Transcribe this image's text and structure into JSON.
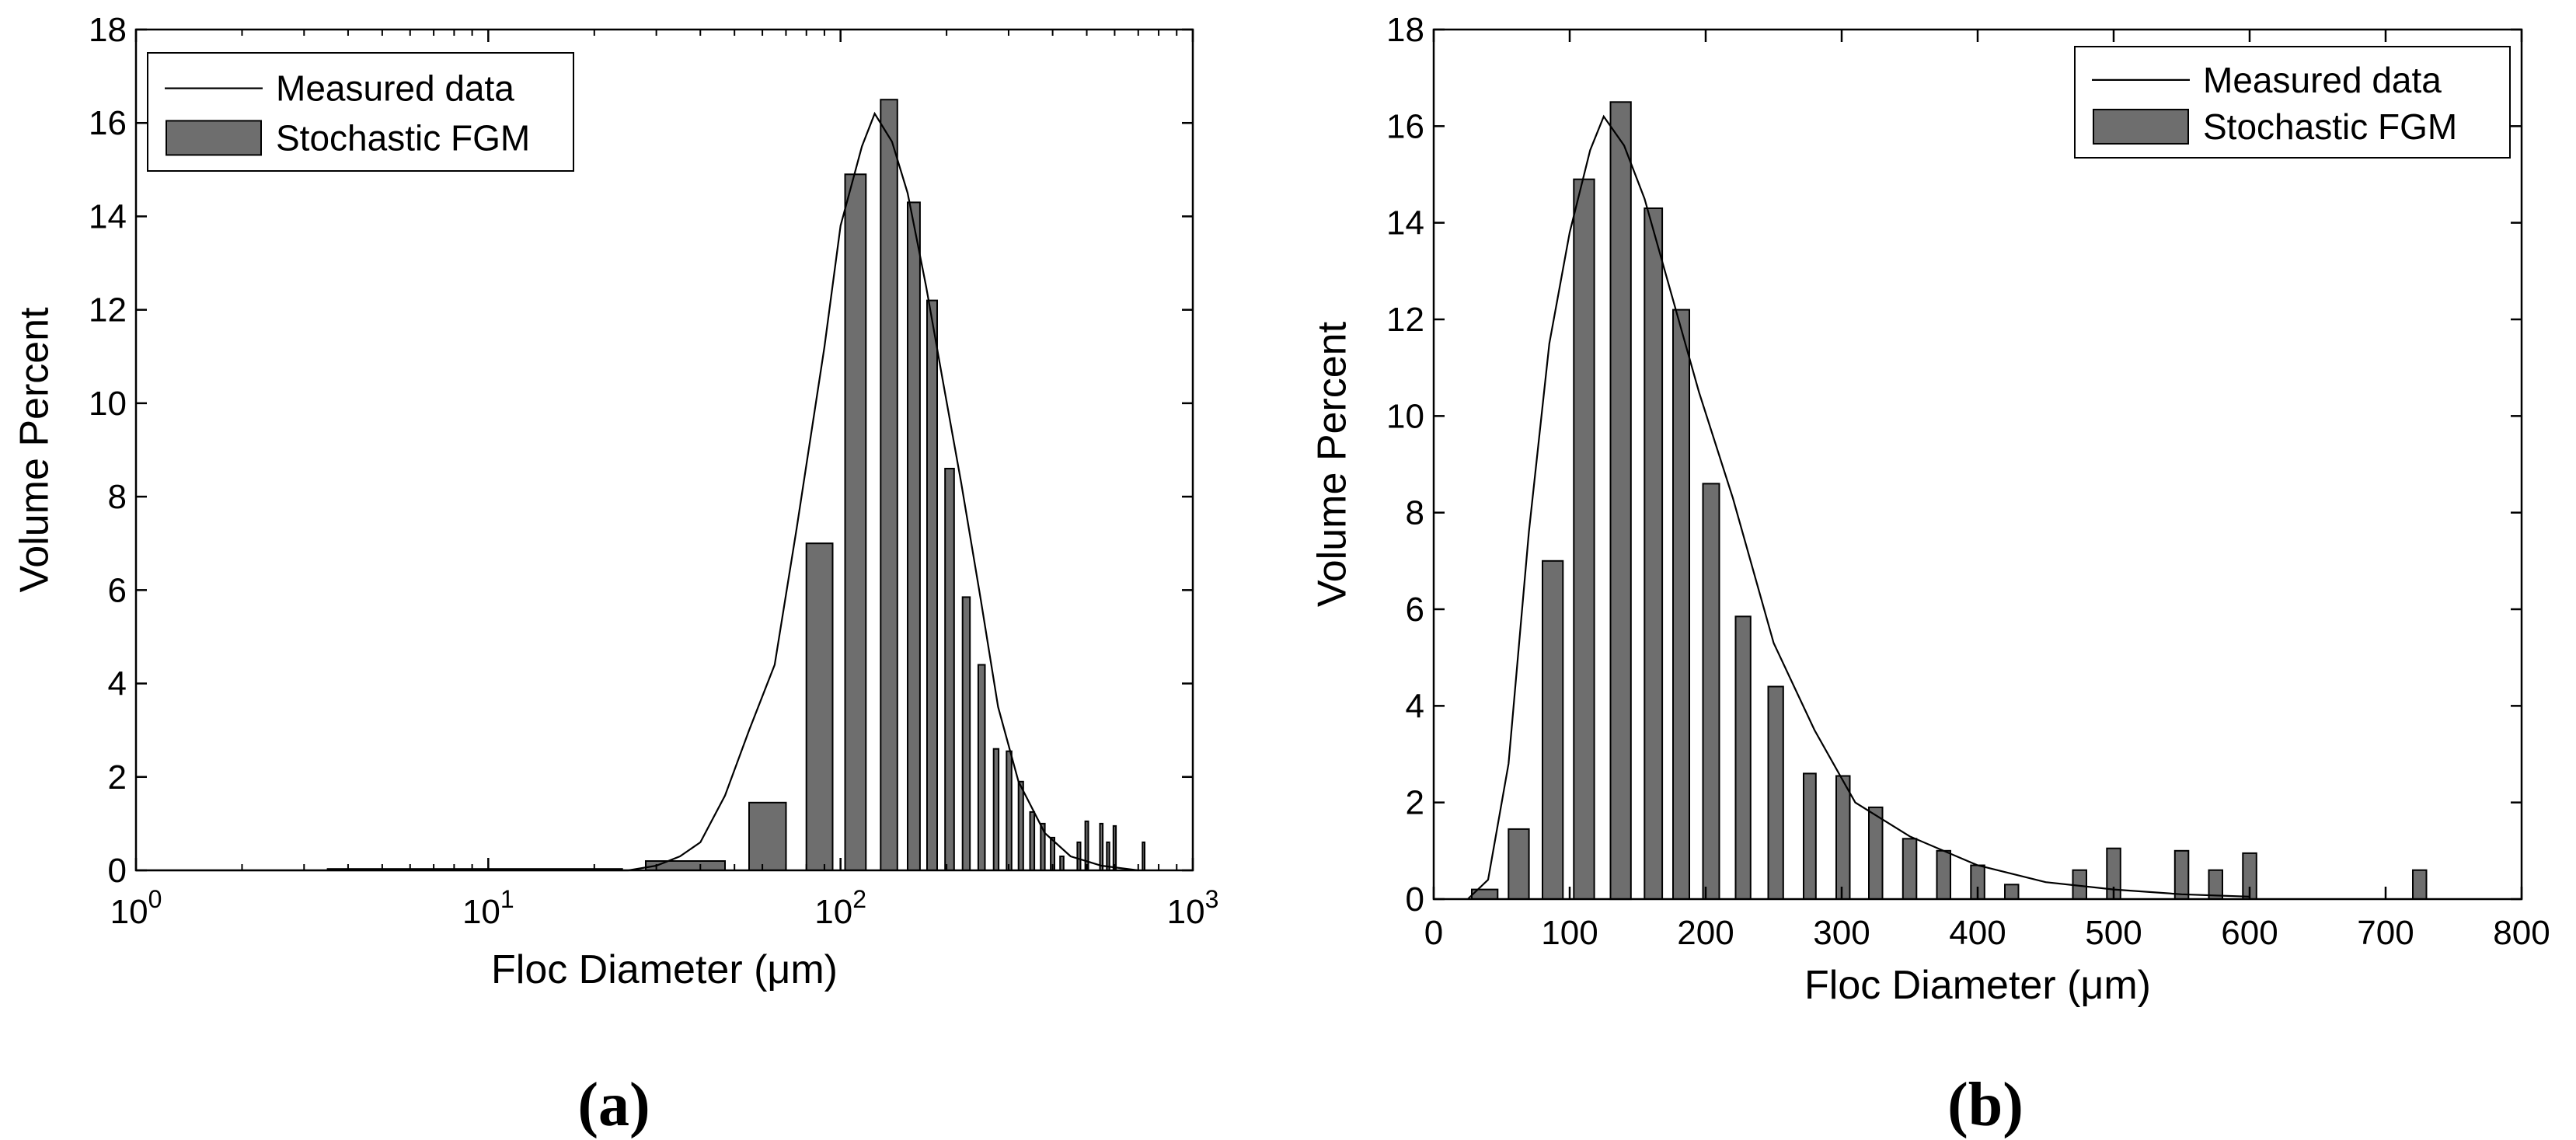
{
  "chart_data": [
    {
      "panel_label": "(a)",
      "type": "bar",
      "xscale": "log",
      "xlabel": "Floc Diameter (μm)",
      "ylabel": "Volume Percent",
      "xlim": [
        1,
        1000
      ],
      "ylim": [
        0,
        18
      ],
      "yticks": [
        0,
        2,
        4,
        6,
        8,
        10,
        12,
        14,
        16,
        18
      ],
      "xticks": [
        {
          "value": 1,
          "base": "10",
          "exp": "0"
        },
        {
          "value": 10,
          "base": "10",
          "exp": "1"
        },
        {
          "value": 100,
          "base": "10",
          "exp": "2"
        },
        {
          "value": 1000,
          "base": "10",
          "exp": "3"
        }
      ],
      "grid": false,
      "legend": {
        "position": "top-left",
        "entries": [
          "Measured data",
          "Stochastic FGM"
        ]
      },
      "series": [
        {
          "name": "Measured data",
          "kind": "line",
          "color": "#000000",
          "x": [
            1,
            3,
            10,
            25,
            30,
            35,
            40,
            47,
            55,
            65,
            75,
            90,
            100,
            115,
            125,
            140,
            155,
            175,
            195,
            220,
            250,
            280,
            320,
            380,
            450,
            550,
            700
          ],
          "y": [
            0,
            0,
            0,
            0,
            0.1,
            0.3,
            0.6,
            1.6,
            3.0,
            4.4,
            7.3,
            11.2,
            13.8,
            15.5,
            16.2,
            15.6,
            14.5,
            12.5,
            10.5,
            8.3,
            5.8,
            3.5,
            1.9,
            0.8,
            0.3,
            0.1,
            0
          ]
        },
        {
          "name": "Stochastic FGM",
          "kind": "bar",
          "color": "#6e6e6e",
          "bars": [
            {
              "x0": 3.5,
              "x1": 24,
              "value": 0.03
            },
            {
              "x0": 28,
              "x1": 47,
              "value": 0.2
            },
            {
              "x0": 55,
              "x1": 70,
              "value": 1.45
            },
            {
              "x0": 80,
              "x1": 95,
              "value": 7.0
            },
            {
              "x0": 103,
              "x1": 118,
              "value": 14.9
            },
            {
              "x0": 130,
              "x1": 145,
              "value": 16.5
            },
            {
              "x0": 155,
              "x1": 168,
              "value": 14.3
            },
            {
              "x0": 176,
              "x1": 188,
              "value": 12.2
            },
            {
              "x0": 198,
              "x1": 210,
              "value": 8.6
            },
            {
              "x0": 222,
              "x1": 233,
              "value": 5.85
            },
            {
              "x0": 246,
              "x1": 257,
              "value": 4.4
            },
            {
              "x0": 272,
              "x1": 281,
              "value": 2.6
            },
            {
              "x0": 296,
              "x1": 306,
              "value": 2.55
            },
            {
              "x0": 320,
              "x1": 330,
              "value": 1.9
            },
            {
              "x0": 345,
              "x1": 355,
              "value": 1.25
            },
            {
              "x0": 370,
              "x1": 380,
              "value": 1.0
            },
            {
              "x0": 395,
              "x1": 405,
              "value": 0.7
            },
            {
              "x0": 420,
              "x1": 430,
              "value": 0.3
            },
            {
              "x0": 470,
              "x1": 480,
              "value": 0.6
            },
            {
              "x0": 495,
              "x1": 505,
              "value": 1.05
            },
            {
              "x0": 545,
              "x1": 555,
              "value": 1.0
            },
            {
              "x0": 570,
              "x1": 580,
              "value": 0.6
            },
            {
              "x0": 595,
              "x1": 605,
              "value": 0.95
            },
            {
              "x0": 720,
              "x1": 730,
              "value": 0.6
            }
          ]
        }
      ]
    },
    {
      "panel_label": "(b)",
      "type": "bar",
      "xscale": "linear",
      "xlabel": "Floc Diameter (μm)",
      "ylabel": "Volume Percent",
      "xlim": [
        0,
        800
      ],
      "ylim": [
        0,
        18
      ],
      "yticks": [
        0,
        2,
        4,
        6,
        8,
        10,
        12,
        14,
        16,
        18
      ],
      "xticks": [
        {
          "value": 0,
          "label": "0"
        },
        {
          "value": 100,
          "label": "100"
        },
        {
          "value": 200,
          "label": "200"
        },
        {
          "value": 300,
          "label": "300"
        },
        {
          "value": 400,
          "label": "400"
        },
        {
          "value": 500,
          "label": "500"
        },
        {
          "value": 600,
          "label": "600"
        },
        {
          "value": 700,
          "label": "700"
        },
        {
          "value": 800,
          "label": "800"
        }
      ],
      "grid": false,
      "legend": {
        "position": "top-right",
        "entries": [
          "Measured data",
          "Stochastic FGM"
        ]
      },
      "series": [
        {
          "name": "Measured data",
          "kind": "line",
          "color": "#000000",
          "x": [
            25,
            40,
            55,
            70,
            85,
            100,
            115,
            125,
            140,
            155,
            175,
            195,
            220,
            250,
            280,
            310,
            350,
            400,
            450,
            500,
            550,
            600
          ],
          "y": [
            0,
            0.4,
            2.8,
            7.6,
            11.5,
            13.8,
            15.5,
            16.2,
            15.6,
            14.5,
            12.5,
            10.5,
            8.3,
            5.3,
            3.5,
            2.0,
            1.3,
            0.7,
            0.35,
            0.2,
            0.1,
            0.05
          ]
        },
        {
          "name": "Stochastic FGM",
          "kind": "bar",
          "color": "#6e6e6e",
          "bars": [
            {
              "x0": 28,
              "x1": 47,
              "value": 0.2
            },
            {
              "x0": 55,
              "x1": 70,
              "value": 1.45
            },
            {
              "x0": 80,
              "x1": 95,
              "value": 7.0
            },
            {
              "x0": 103,
              "x1": 118,
              "value": 14.9
            },
            {
              "x0": 130,
              "x1": 145,
              "value": 16.5
            },
            {
              "x0": 155,
              "x1": 168,
              "value": 14.3
            },
            {
              "x0": 176,
              "x1": 188,
              "value": 12.2
            },
            {
              "x0": 198,
              "x1": 210,
              "value": 8.6
            },
            {
              "x0": 222,
              "x1": 233,
              "value": 5.85
            },
            {
              "x0": 246,
              "x1": 257,
              "value": 4.4
            },
            {
              "x0": 272,
              "x1": 281,
              "value": 2.6
            },
            {
              "x0": 296,
              "x1": 306,
              "value": 2.55
            },
            {
              "x0": 320,
              "x1": 330,
              "value": 1.9
            },
            {
              "x0": 345,
              "x1": 355,
              "value": 1.25
            },
            {
              "x0": 370,
              "x1": 380,
              "value": 1.0
            },
            {
              "x0": 395,
              "x1": 405,
              "value": 0.7
            },
            {
              "x0": 420,
              "x1": 430,
              "value": 0.3
            },
            {
              "x0": 470,
              "x1": 480,
              "value": 0.6
            },
            {
              "x0": 495,
              "x1": 505,
              "value": 1.05
            },
            {
              "x0": 545,
              "x1": 555,
              "value": 1.0
            },
            {
              "x0": 570,
              "x1": 580,
              "value": 0.6
            },
            {
              "x0": 595,
              "x1": 605,
              "value": 0.95
            },
            {
              "x0": 720,
              "x1": 730,
              "value": 0.6
            }
          ]
        }
      ]
    }
  ]
}
